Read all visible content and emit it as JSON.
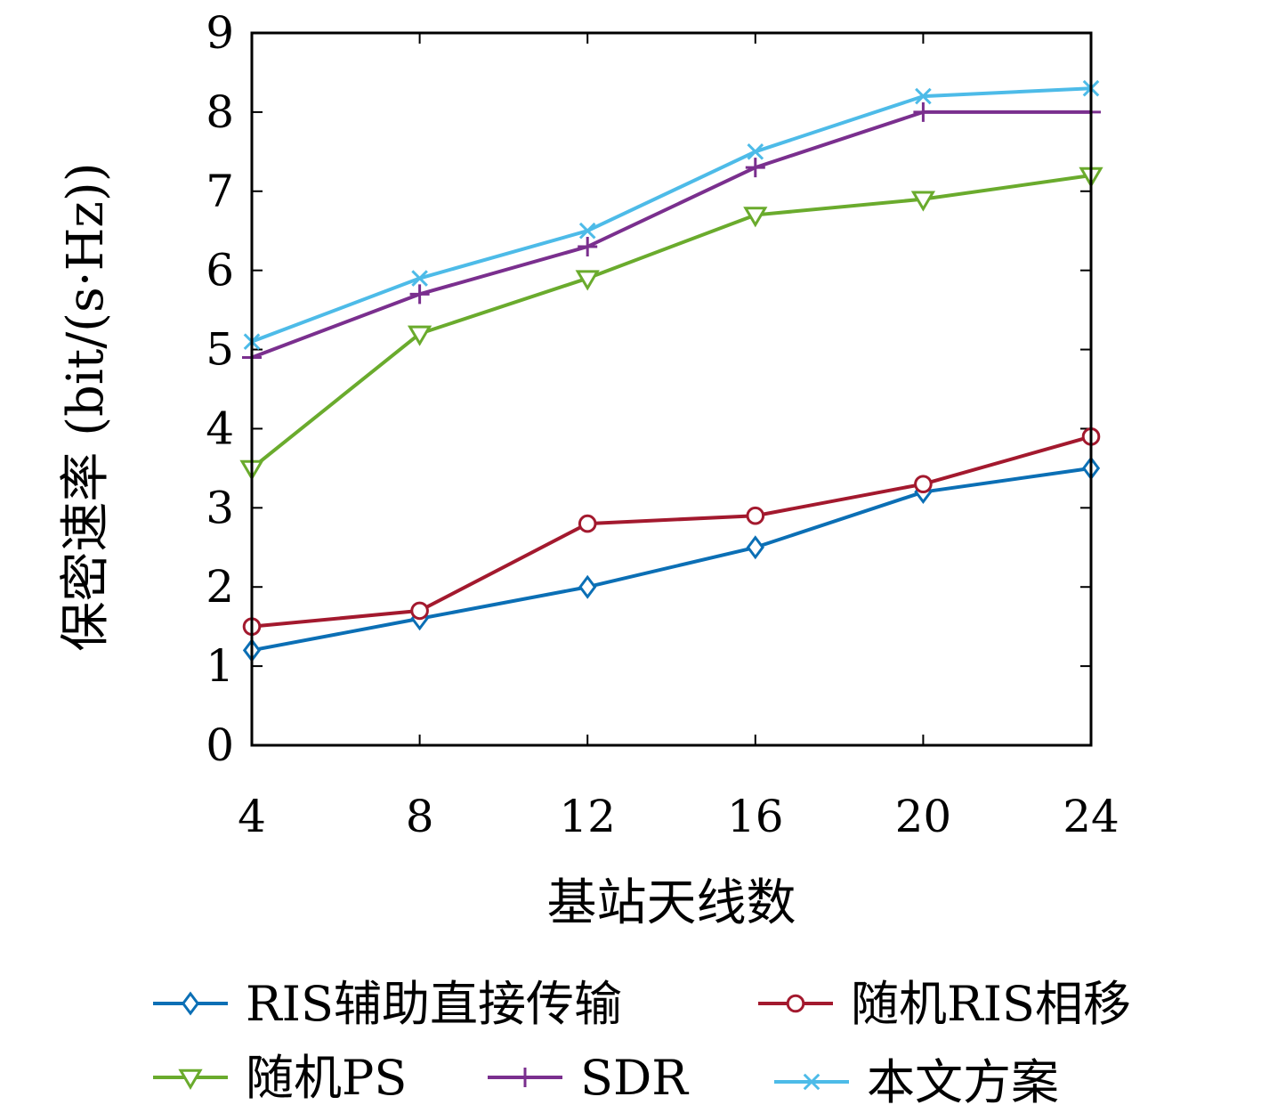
{
  "chart_data": {
    "type": "line",
    "title": "",
    "xlabel": "基站天线数",
    "ylabel": "保密速率 (bit/(s·Hz))",
    "x": [
      4,
      8,
      12,
      16,
      20,
      24
    ],
    "xticks": [
      "4",
      "8",
      "12",
      "16",
      "20",
      "24"
    ],
    "yticks": [
      "0",
      "1",
      "2",
      "3",
      "4",
      "5",
      "6",
      "7",
      "8",
      "9"
    ],
    "xlim": [
      4,
      24
    ],
    "ylim": [
      0,
      9
    ],
    "grid": false,
    "legend_position": "bottom",
    "series": [
      {
        "name": "RIS辅助直接传输",
        "color": "#0b6fb5",
        "marker": "diamond",
        "values": [
          1.2,
          1.6,
          2.0,
          2.5,
          3.2,
          3.5
        ]
      },
      {
        "name": "随机RIS相移",
        "color": "#a3192e",
        "marker": "circle",
        "values": [
          1.5,
          1.7,
          2.8,
          2.9,
          3.3,
          3.9
        ]
      },
      {
        "name": "随机PS",
        "color": "#6aab2d",
        "marker": "triangle-down",
        "values": [
          3.5,
          5.2,
          5.9,
          6.7,
          6.9,
          7.2
        ]
      },
      {
        "name": "SDR",
        "color": "#7a2f8e",
        "marker": "plus",
        "values": [
          4.9,
          5.7,
          6.3,
          7.3,
          8.0,
          8.0
        ]
      },
      {
        "name": "本文方案",
        "color": "#4dbbe8",
        "marker": "x",
        "values": [
          5.1,
          5.9,
          6.5,
          7.5,
          8.2,
          8.3
        ]
      }
    ]
  }
}
